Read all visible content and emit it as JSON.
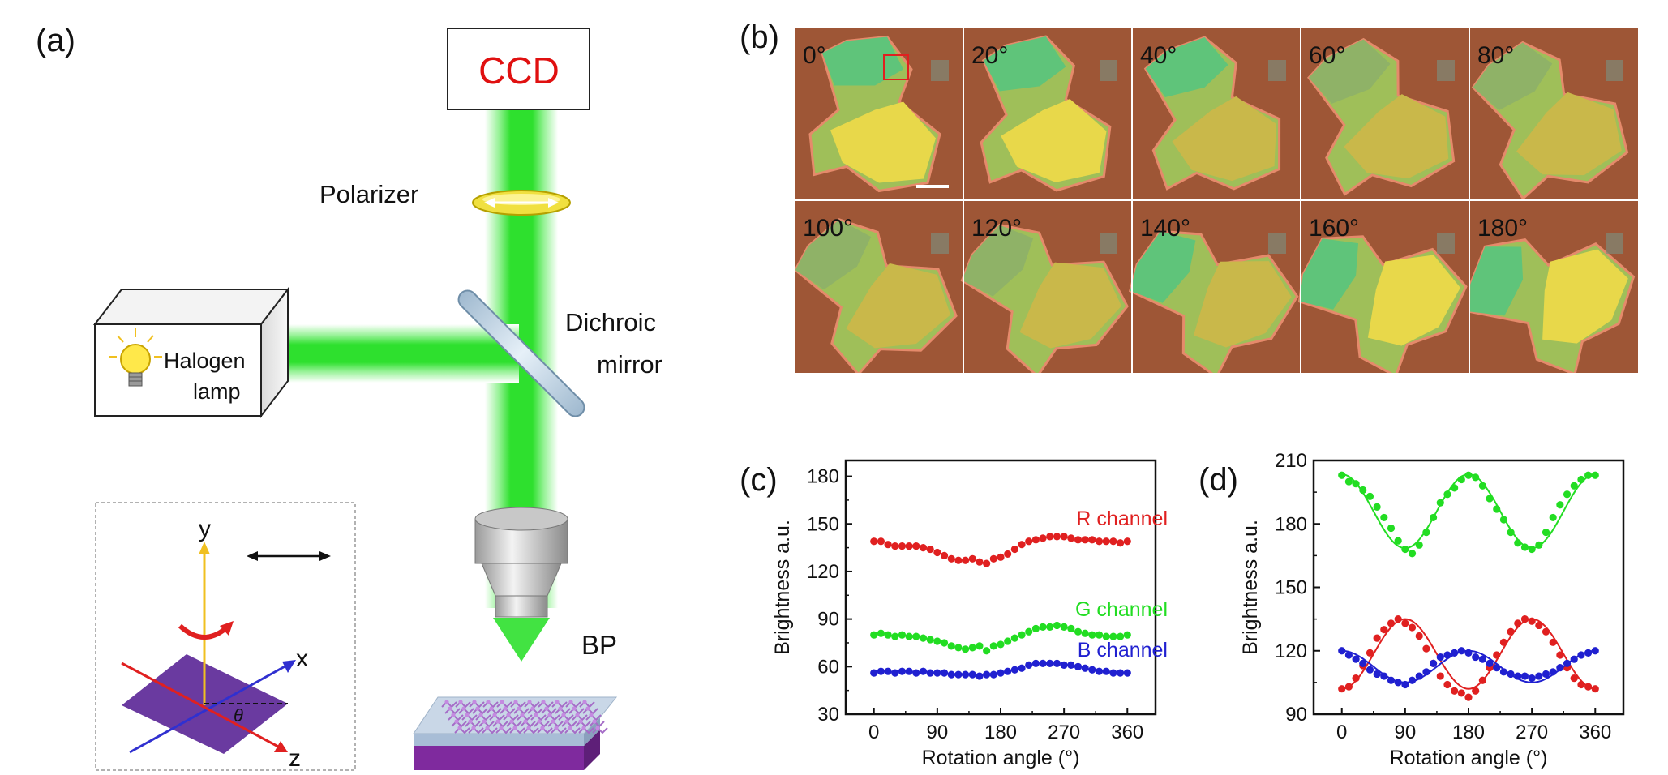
{
  "panel_labels": {
    "a": "(a)",
    "b": "(b)",
    "c": "(c)",
    "d": "(d)"
  },
  "setup": {
    "ccd_label": "CCD",
    "polarizer_label": "Polarizer",
    "dichroic_label_line1": "Dichroic",
    "dichroic_label_line2": "mirror",
    "lamp_label_line1": "Halogen",
    "lamp_label_line2": "lamp",
    "sample_label": "BP",
    "axis_y": "y",
    "axis_x": "x",
    "axis_z": "z",
    "angle_symbol": "θ",
    "colors": {
      "beam": "#22dd22",
      "ccd_text": "#e01010",
      "polarizer": "#f0e040",
      "crystal_top": "#7a40b0",
      "substrate": "#7f2a9e"
    }
  },
  "micrographs": {
    "angles": [
      "0°",
      "20°",
      "40°",
      "60°",
      "80°",
      "100°",
      "120°",
      "140°",
      "160°",
      "180°"
    ]
  },
  "chart_data": [
    {
      "type": "scatter",
      "panel": "(c)",
      "xlabel": "Rotation angle (°)",
      "ylabel": "Brightness a.u.",
      "xlim": [
        -40,
        400
      ],
      "ylim": [
        30,
        190
      ],
      "xticks": [
        0,
        90,
        180,
        270,
        360
      ],
      "yticks": [
        30,
        60,
        90,
        120,
        150,
        180
      ],
      "xtick_labels": [
        "0",
        "90",
        "180",
        "270",
        "360"
      ],
      "ytick_labels": [
        "30",
        "60",
        "90",
        "120",
        "150",
        "180"
      ],
      "series": [
        {
          "name": "R channel",
          "color": "#e02020",
          "x": [
            0,
            10,
            20,
            30,
            40,
            50,
            60,
            70,
            80,
            90,
            100,
            110,
            120,
            130,
            140,
            150,
            160,
            170,
            180,
            190,
            200,
            210,
            220,
            230,
            240,
            250,
            260,
            270,
            280,
            290,
            300,
            310,
            320,
            330,
            340,
            350,
            360
          ],
          "y": [
            139,
            139,
            137,
            136,
            136,
            136,
            136,
            135,
            134,
            132,
            130,
            128,
            127,
            127,
            128,
            126,
            125,
            128,
            129,
            131,
            134,
            137,
            139,
            140,
            141,
            142,
            142,
            142,
            141,
            140,
            140,
            140,
            139,
            139,
            139,
            138,
            139
          ]
        },
        {
          "name": "G channel",
          "color": "#22dd22",
          "x": [
            0,
            10,
            20,
            30,
            40,
            50,
            60,
            70,
            80,
            90,
            100,
            110,
            120,
            130,
            140,
            150,
            160,
            170,
            180,
            190,
            200,
            210,
            220,
            230,
            240,
            250,
            260,
            270,
            280,
            290,
            300,
            310,
            320,
            330,
            340,
            350,
            360
          ],
          "y": [
            80,
            81,
            80,
            79,
            80,
            79,
            79,
            78,
            77,
            76,
            75,
            73,
            72,
            71,
            72,
            73,
            70,
            73,
            74,
            76,
            78,
            80,
            82,
            84,
            85,
            85,
            86,
            85,
            84,
            82,
            81,
            80,
            80,
            79,
            79,
            79,
            80
          ]
        },
        {
          "name": "B channel",
          "color": "#2020d0",
          "x": [
            0,
            10,
            20,
            30,
            40,
            50,
            60,
            70,
            80,
            90,
            100,
            110,
            120,
            130,
            140,
            150,
            160,
            170,
            180,
            190,
            200,
            210,
            220,
            230,
            240,
            250,
            260,
            270,
            280,
            290,
            300,
            310,
            320,
            330,
            340,
            350,
            360
          ],
          "y": [
            56,
            57,
            57,
            56,
            57,
            57,
            56,
            57,
            56,
            56,
            56,
            55,
            55,
            55,
            55,
            54,
            55,
            55,
            56,
            57,
            58,
            59,
            61,
            62,
            62,
            62,
            62,
            61,
            61,
            60,
            59,
            58,
            57,
            57,
            56,
            56,
            56
          ]
        }
      ]
    },
    {
      "type": "scatter",
      "panel": "(d)",
      "xlabel": "Rotation angle (°)",
      "ylabel": "Brightness a.u.",
      "xlim": [
        -40,
        400
      ],
      "ylim": [
        90,
        210
      ],
      "xticks": [
        0,
        90,
        180,
        270,
        360
      ],
      "yticks": [
        90,
        120,
        150,
        180,
        210
      ],
      "xtick_labels": [
        "0",
        "90",
        "180",
        "270",
        "360"
      ],
      "ytick_labels": [
        "90",
        "120",
        "150",
        "180",
        "210"
      ],
      "series": [
        {
          "name": "",
          "color": "#22dd22",
          "x": [
            0,
            10,
            20,
            30,
            40,
            50,
            60,
            70,
            80,
            90,
            100,
            110,
            120,
            130,
            140,
            150,
            160,
            170,
            180,
            190,
            200,
            210,
            220,
            230,
            240,
            250,
            260,
            270,
            280,
            290,
            300,
            310,
            320,
            330,
            340,
            350,
            360
          ],
          "y": [
            203,
            200,
            199,
            196,
            193,
            188,
            183,
            178,
            172,
            168,
            166,
            170,
            176,
            183,
            190,
            194,
            197,
            201,
            203,
            202,
            198,
            192,
            187,
            182,
            176,
            171,
            169,
            168,
            170,
            176,
            183,
            189,
            194,
            198,
            201,
            203,
            203
          ],
          "fit": {
            "mean": 186,
            "amp": 17.5,
            "phase_deg": 0
          }
        },
        {
          "name": "",
          "color": "#e02020",
          "x": [
            0,
            10,
            20,
            30,
            40,
            50,
            60,
            70,
            80,
            90,
            100,
            110,
            120,
            130,
            140,
            150,
            160,
            170,
            180,
            190,
            200,
            210,
            220,
            230,
            240,
            250,
            260,
            270,
            280,
            290,
            300,
            310,
            320,
            330,
            340,
            350,
            360
          ],
          "y": [
            102,
            103,
            107,
            113,
            119,
            126,
            130,
            133,
            135,
            133,
            131,
            127,
            121,
            114,
            108,
            104,
            101,
            100,
            98,
            101,
            106,
            112,
            118,
            124,
            129,
            133,
            135,
            134,
            132,
            129,
            124,
            118,
            112,
            107,
            104,
            103,
            102
          ],
          "fit": {
            "mean": 118.5,
            "amp": -16.5,
            "phase_deg": 0
          }
        },
        {
          "name": "",
          "color": "#2020d0",
          "x": [
            0,
            10,
            20,
            30,
            40,
            50,
            60,
            70,
            80,
            90,
            100,
            110,
            120,
            130,
            140,
            150,
            160,
            170,
            180,
            190,
            200,
            210,
            220,
            230,
            240,
            250,
            260,
            270,
            280,
            290,
            300,
            310,
            320,
            330,
            340,
            350,
            360
          ],
          "y": [
            120,
            118,
            116,
            114,
            111,
            109,
            108,
            106,
            105,
            104,
            106,
            108,
            110,
            114,
            117,
            118,
            119,
            120,
            119,
            117,
            116,
            114,
            112,
            110,
            109,
            108,
            108,
            107,
            108,
            109,
            110,
            112,
            114,
            116,
            118,
            119,
            120
          ],
          "fit": {
            "mean": 112.5,
            "amp": 7.5,
            "phase_deg": 0
          }
        }
      ]
    }
  ]
}
